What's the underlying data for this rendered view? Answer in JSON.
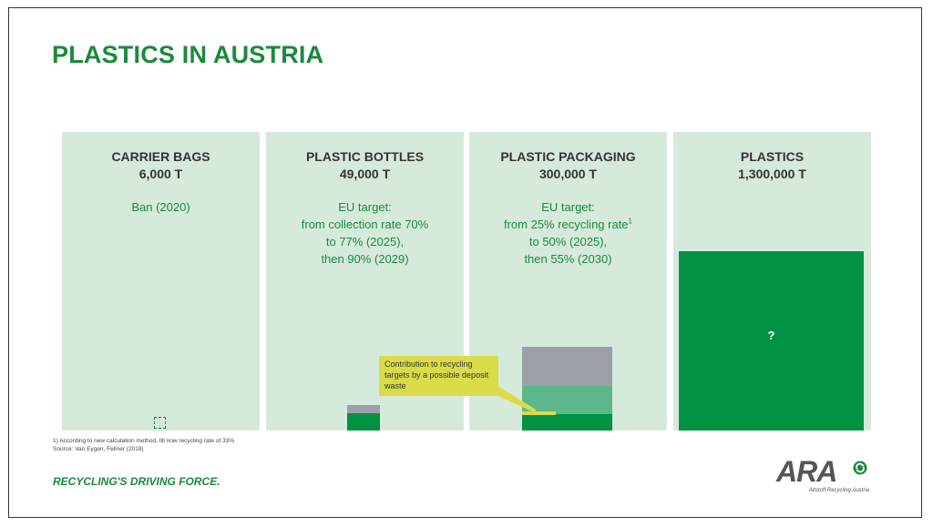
{
  "title": "PLASTICS IN AUSTRIA",
  "panels": [
    {
      "name": "CARRIER BAGS",
      "amount": "6,000 T",
      "notes": [
        "Ban (2020)"
      ]
    },
    {
      "name": "PLASTIC BOTTLES",
      "amount": "49,000 T",
      "notes": [
        "EU target:",
        "from collection rate 70%",
        "to 77% (2025),",
        "then 90% (2029)"
      ]
    },
    {
      "name": "PLASTIC PACKAGING",
      "amount": "300,000 T",
      "notes": [
        "EU target:",
        "from 25% recycling rate",
        "to 50% (2025),",
        "then 55% (2030)"
      ],
      "footnote_marker": "1"
    },
    {
      "name": "PLASTICS",
      "amount": "1,300,000 T",
      "notes": [],
      "box_label": "?"
    }
  ],
  "callout": "Contribution to recycling targets by a possible deposit waste",
  "footnote": {
    "line1": "1) According to new calculation method, till now recycling rate of 33%",
    "line2": "Source: Van Eygen, Fellner (2018)"
  },
  "tagline": "RECYCLING'S DRIVING FORCE.",
  "logo": {
    "text": "ARA",
    "sub": "Altstoff Recycling Austria"
  },
  "colors": {
    "green": "#1a8a3c",
    "panel_bg": "#d6eadc",
    "dark_green_fill": "#009144",
    "mid_green_fill": "#5cb88a",
    "gray_fill": "#9aa0a6",
    "callout_yellow": "#d9dc48"
  }
}
